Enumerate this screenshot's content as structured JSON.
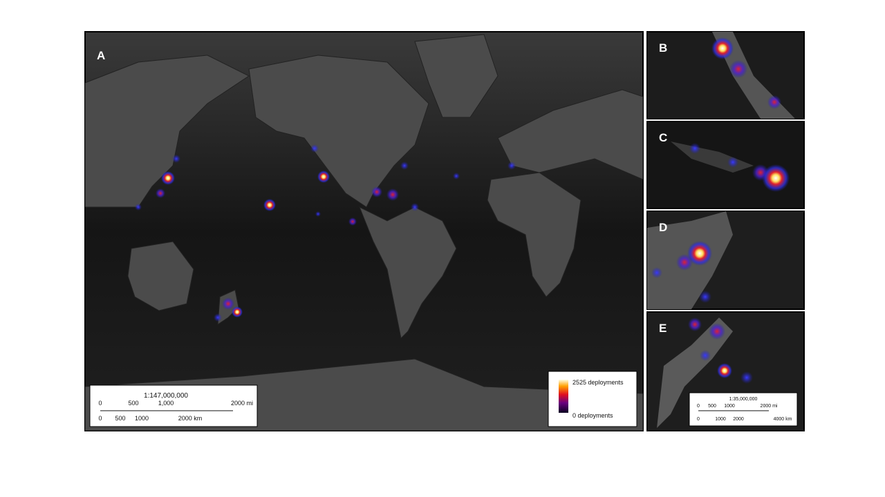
{
  "panels": [
    {
      "label": "A"
    },
    {
      "label": "B"
    },
    {
      "label": "C"
    },
    {
      "label": "D"
    },
    {
      "label": "E"
    }
  ],
  "main_scale": {
    "ratio": "1:147,000,000",
    "miles": [
      "0",
      "500",
      "1,000",
      "2000 mi"
    ],
    "km": [
      "0",
      "500",
      "1000",
      "2000 km"
    ]
  },
  "legend": {
    "max": "2525 deployments",
    "min": "0 deployments"
  },
  "inset_scale": {
    "ratio": "1:35,000,000",
    "miles": [
      "0",
      "500",
      "1000",
      "2000 mi"
    ],
    "km": [
      "0",
      "1000",
      "2000",
      "4000 km"
    ]
  }
}
